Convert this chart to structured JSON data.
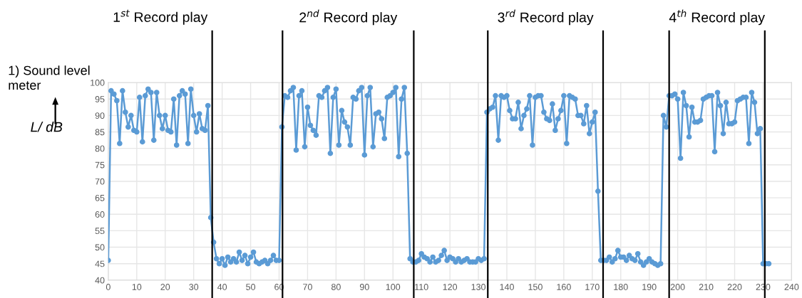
{
  "chart_data": {
    "type": "line",
    "annotations": [
      "1$^{st}$ Record play",
      "2$^{nd}$ Record play",
      "3$^{rd}$ Record play",
      "4$^{th}$ Record play",
      "1) Sound level meter"
    ],
    "ylabel": "L/ dB",
    "x": [
      0,
      1,
      2,
      3,
      4,
      5,
      6,
      7,
      8,
      9,
      10,
      11,
      12,
      13,
      14,
      15,
      16,
      17,
      18,
      19,
      20,
      21,
      22,
      23,
      24,
      25,
      26,
      27,
      28,
      29,
      30,
      31,
      32,
      33,
      34,
      35,
      36,
      37,
      38,
      39,
      40,
      41,
      42,
      43,
      44,
      45,
      46,
      47,
      48,
      49,
      50,
      51,
      52,
      53,
      54,
      55,
      56,
      57,
      58,
      59,
      60,
      61,
      62,
      63,
      64,
      65,
      66,
      67,
      68,
      69,
      70,
      71,
      72,
      73,
      74,
      75,
      76,
      77,
      78,
      79,
      80,
      81,
      82,
      83,
      84,
      85,
      86,
      87,
      88,
      89,
      90,
      91,
      92,
      93,
      94,
      95,
      96,
      97,
      98,
      99,
      100,
      101,
      102,
      103,
      104,
      105,
      106,
      107,
      108,
      109,
      110,
      111,
      112,
      113,
      114,
      115,
      116,
      117,
      118,
      119,
      120,
      121,
      122,
      123,
      124,
      125,
      126,
      127,
      128,
      129,
      130,
      131,
      132,
      133,
      134,
      135,
      136,
      137,
      138,
      139,
      140,
      141,
      142,
      143,
      144,
      145,
      146,
      147,
      148,
      149,
      150,
      151,
      152,
      153,
      154,
      155,
      156,
      157,
      158,
      159,
      160,
      161,
      162,
      163,
      164,
      165,
      166,
      167,
      168,
      169,
      170,
      171,
      172,
      173,
      174,
      175,
      176,
      177,
      178,
      179,
      180,
      181,
      182,
      183,
      184,
      185,
      186,
      187,
      188,
      189,
      190,
      191,
      192,
      193,
      194,
      195,
      196,
      197,
      198,
      199,
      200,
      201,
      202,
      203,
      204,
      205,
      206,
      207,
      208,
      209,
      210,
      211,
      212,
      213,
      214,
      215,
      216,
      217,
      218,
      219,
      220,
      221,
      222,
      223,
      224,
      225,
      226,
      227,
      228,
      229,
      230,
      231,
      232
    ],
    "series": [
      {
        "color": "#5b9bd5",
        "values": [
          46,
          97.5,
          96.5,
          94.5,
          81.5,
          97.5,
          91,
          86.5,
          90,
          85.5,
          85,
          95.5,
          82,
          96,
          98,
          97,
          82.5,
          97,
          90,
          86,
          90,
          85.5,
          85,
          95,
          81,
          96,
          97.5,
          96.5,
          81.5,
          98,
          90,
          85,
          90.5,
          86,
          85.5,
          93,
          59,
          51.5,
          46.5,
          45,
          46.5,
          44.5,
          47,
          45.5,
          46.5,
          45.5,
          48.5,
          46,
          47.5,
          45,
          47,
          48.5,
          45.5,
          45,
          45.5,
          46,
          45,
          46,
          47.5,
          46,
          46,
          86.5,
          96,
          95.5,
          97.5,
          98.5,
          79.5,
          96,
          97.5,
          80.5,
          92.5,
          87,
          85.5,
          84,
          96,
          95.5,
          97.5,
          98.5,
          78.5,
          95.5,
          98,
          81,
          91.5,
          88,
          86.5,
          81,
          95.5,
          95,
          97.5,
          98.5,
          78,
          96,
          98.5,
          80.5,
          90.5,
          91,
          89,
          83,
          95.5,
          96,
          97,
          98.5,
          77.5,
          95,
          98.5,
          78.5,
          46.5,
          45.5,
          45.5,
          46,
          48,
          47,
          46.5,
          45.5,
          47,
          45.5,
          46,
          47.5,
          49,
          46,
          47,
          46.5,
          45.5,
          46.5,
          45.5,
          46,
          46.5,
          45.5,
          45.5,
          45.5,
          46.5,
          46,
          46.5,
          91,
          92,
          92.5,
          96,
          82.5,
          96,
          95.5,
          96,
          91.5,
          89,
          89,
          94,
          86,
          90,
          92,
          96,
          81,
          95.5,
          96,
          96,
          91,
          89,
          88.5,
          93.5,
          85.5,
          89,
          91.5,
          96,
          81.5,
          96,
          95.5,
          95,
          90,
          90,
          87.5,
          93,
          84.5,
          88,
          91,
          67,
          46,
          46,
          46,
          47,
          45.5,
          46.5,
          49,
          47,
          47,
          46,
          47.5,
          46.5,
          46,
          48,
          45.5,
          44.5,
          45.5,
          46.5,
          45.5,
          45,
          44.5,
          45,
          90,
          86.5,
          96,
          96,
          96.5,
          95,
          77,
          97,
          93,
          83.5,
          92.5,
          88,
          88,
          88.5,
          95,
          95.5,
          96,
          96,
          79,
          97,
          93,
          84.5,
          94,
          87.5,
          87.5,
          88,
          94.5,
          95,
          95.5,
          95.5,
          81.5,
          97,
          94,
          84.5,
          86,
          45,
          45,
          45
        ]
      }
    ],
    "xlim": [
      0,
      240
    ],
    "xticks": [
      0,
      10,
      20,
      30,
      40,
      50,
      60,
      70,
      80,
      90,
      100,
      110,
      120,
      130,
      140,
      150,
      160,
      170,
      180,
      190,
      200,
      210,
      220,
      230,
      240
    ],
    "ylim": [
      40,
      100
    ],
    "yticks": [
      40,
      45,
      50,
      55,
      60,
      65,
      70,
      75,
      80,
      85,
      90,
      95,
      100
    ],
    "ref_lines": [
      {
        "axis": "x",
        "value": 36.5,
        "color": "#000000"
      },
      {
        "axis": "x",
        "value": 61.2,
        "color": "#000000"
      },
      {
        "axis": "x",
        "value": 107.3,
        "color": "#000000"
      },
      {
        "axis": "x",
        "value": 133.3,
        "color": "#000000"
      },
      {
        "axis": "x",
        "value": 173.8,
        "color": "#000000"
      },
      {
        "axis": "x",
        "value": 197,
        "color": "#000000"
      },
      {
        "axis": "x",
        "value": 230.6,
        "color": "#000000"
      }
    ],
    "grid": true,
    "marker": "circle",
    "line_style": "solid",
    "legend": false
  }
}
